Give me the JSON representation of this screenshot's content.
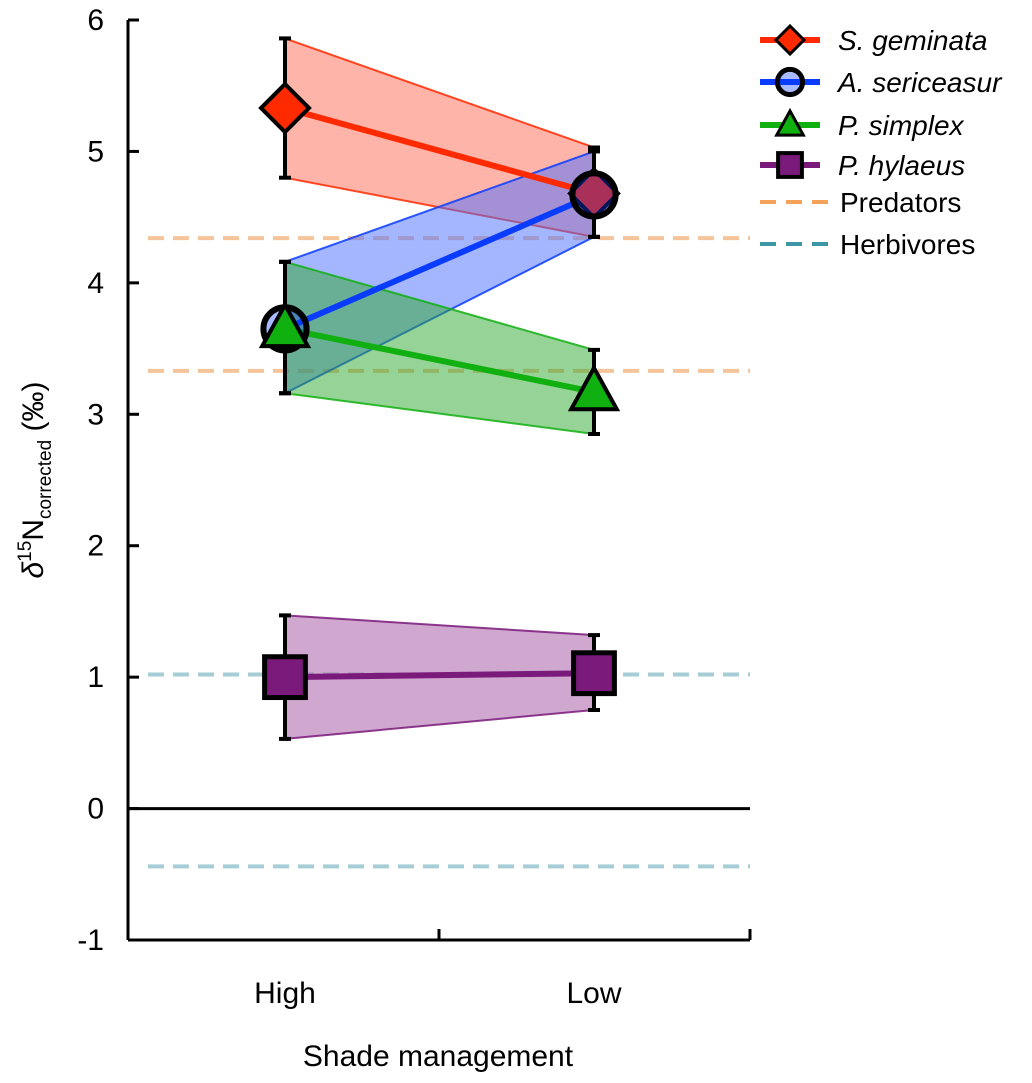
{
  "chart_data": {
    "type": "line",
    "categories": [
      "High",
      "Low"
    ],
    "xlabel": "Shade management",
    "ylabel": {
      "prefix": "δ",
      "sup": "15",
      "main": "N",
      "sub": "corrected",
      "suffix": " (‰)"
    },
    "ylim": [
      -1,
      6
    ],
    "yticks": [
      -1,
      0,
      1,
      2,
      3,
      4,
      5,
      6
    ],
    "grid": false,
    "legend_position": "top-right",
    "series": [
      {
        "name": "S. geminata",
        "values": [
          5.33,
          4.68
        ],
        "lower": [
          4.8,
          4.35
        ],
        "upper": [
          5.86,
          5.03
        ],
        "color": "#ff2a00",
        "band_color": "#ff6a55",
        "marker": "diamond"
      },
      {
        "name": "A. sericeasur",
        "values": [
          3.65,
          4.67
        ],
        "lower": [
          3.16,
          4.35
        ],
        "upper": [
          4.16,
          5.0
        ],
        "color": "#0a3cff",
        "band_color": "#4a6dff",
        "marker": "circle"
      },
      {
        "name": "P. simplex",
        "values": [
          3.65,
          3.17
        ],
        "lower": [
          3.16,
          2.85
        ],
        "upper": [
          4.16,
          3.49
        ],
        "color": "#10b010",
        "band_color": "#2ea82e",
        "marker": "triangle"
      },
      {
        "name": "P. hylaeus",
        "values": [
          1.0,
          1.03
        ],
        "lower": [
          0.53,
          0.75
        ],
        "upper": [
          1.47,
          1.32
        ],
        "color": "#7a1a7a",
        "band_color": "#a050a0",
        "marker": "square"
      }
    ],
    "reference_lines": [
      {
        "name": "Predators",
        "values": [
          4.34,
          3.33
        ],
        "color": "#f5c49a"
      },
      {
        "name": "Herbivores",
        "values": [
          1.02,
          -0.44
        ],
        "color": "#a6cdd6"
      }
    ],
    "legend_colors": {
      "Predators": "#f5a25a",
      "Herbivores": "#3d96a6"
    }
  }
}
